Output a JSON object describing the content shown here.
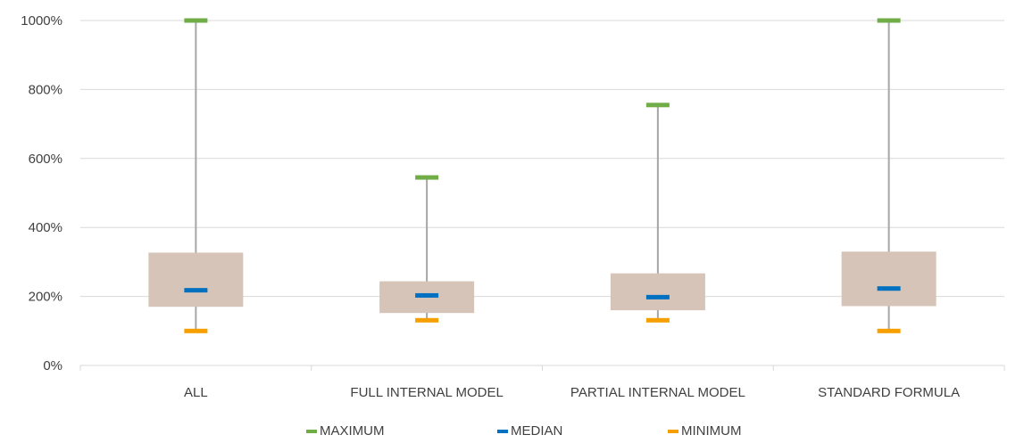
{
  "chart_data": {
    "type": "box",
    "categories": [
      "ALL",
      "FULL INTERNAL MODEL",
      "PARTIAL INTERNAL MODEL",
      "STANDARD FORMULA"
    ],
    "series": [
      {
        "name": "MAXIMUM",
        "values": [
          1000,
          545,
          755,
          1000
        ]
      },
      {
        "name": "MEDIAN",
        "values": [
          218,
          203,
          198,
          223
        ]
      },
      {
        "name": "MINIMUM",
        "values": [
          100,
          131,
          131,
          100
        ]
      }
    ],
    "quartiles": {
      "q1": [
        170,
        152,
        160,
        172
      ],
      "q3": [
        327,
        244,
        267,
        330
      ]
    },
    "ylim": [
      0,
      1000
    ],
    "yticks": [
      0,
      200,
      400,
      600,
      800,
      1000
    ],
    "ytick_labels": [
      "0%",
      "200%",
      "400%",
      "600%",
      "800%",
      "1000%"
    ],
    "grid": true,
    "legend_position": "bottom",
    "colors": {
      "maximum": "#70ad47",
      "median": "#0070c0",
      "minimum": "#f5a000",
      "box": "#d5c4b7",
      "whisker": "#a6a6a6",
      "grid": "#d9d9d9"
    }
  }
}
